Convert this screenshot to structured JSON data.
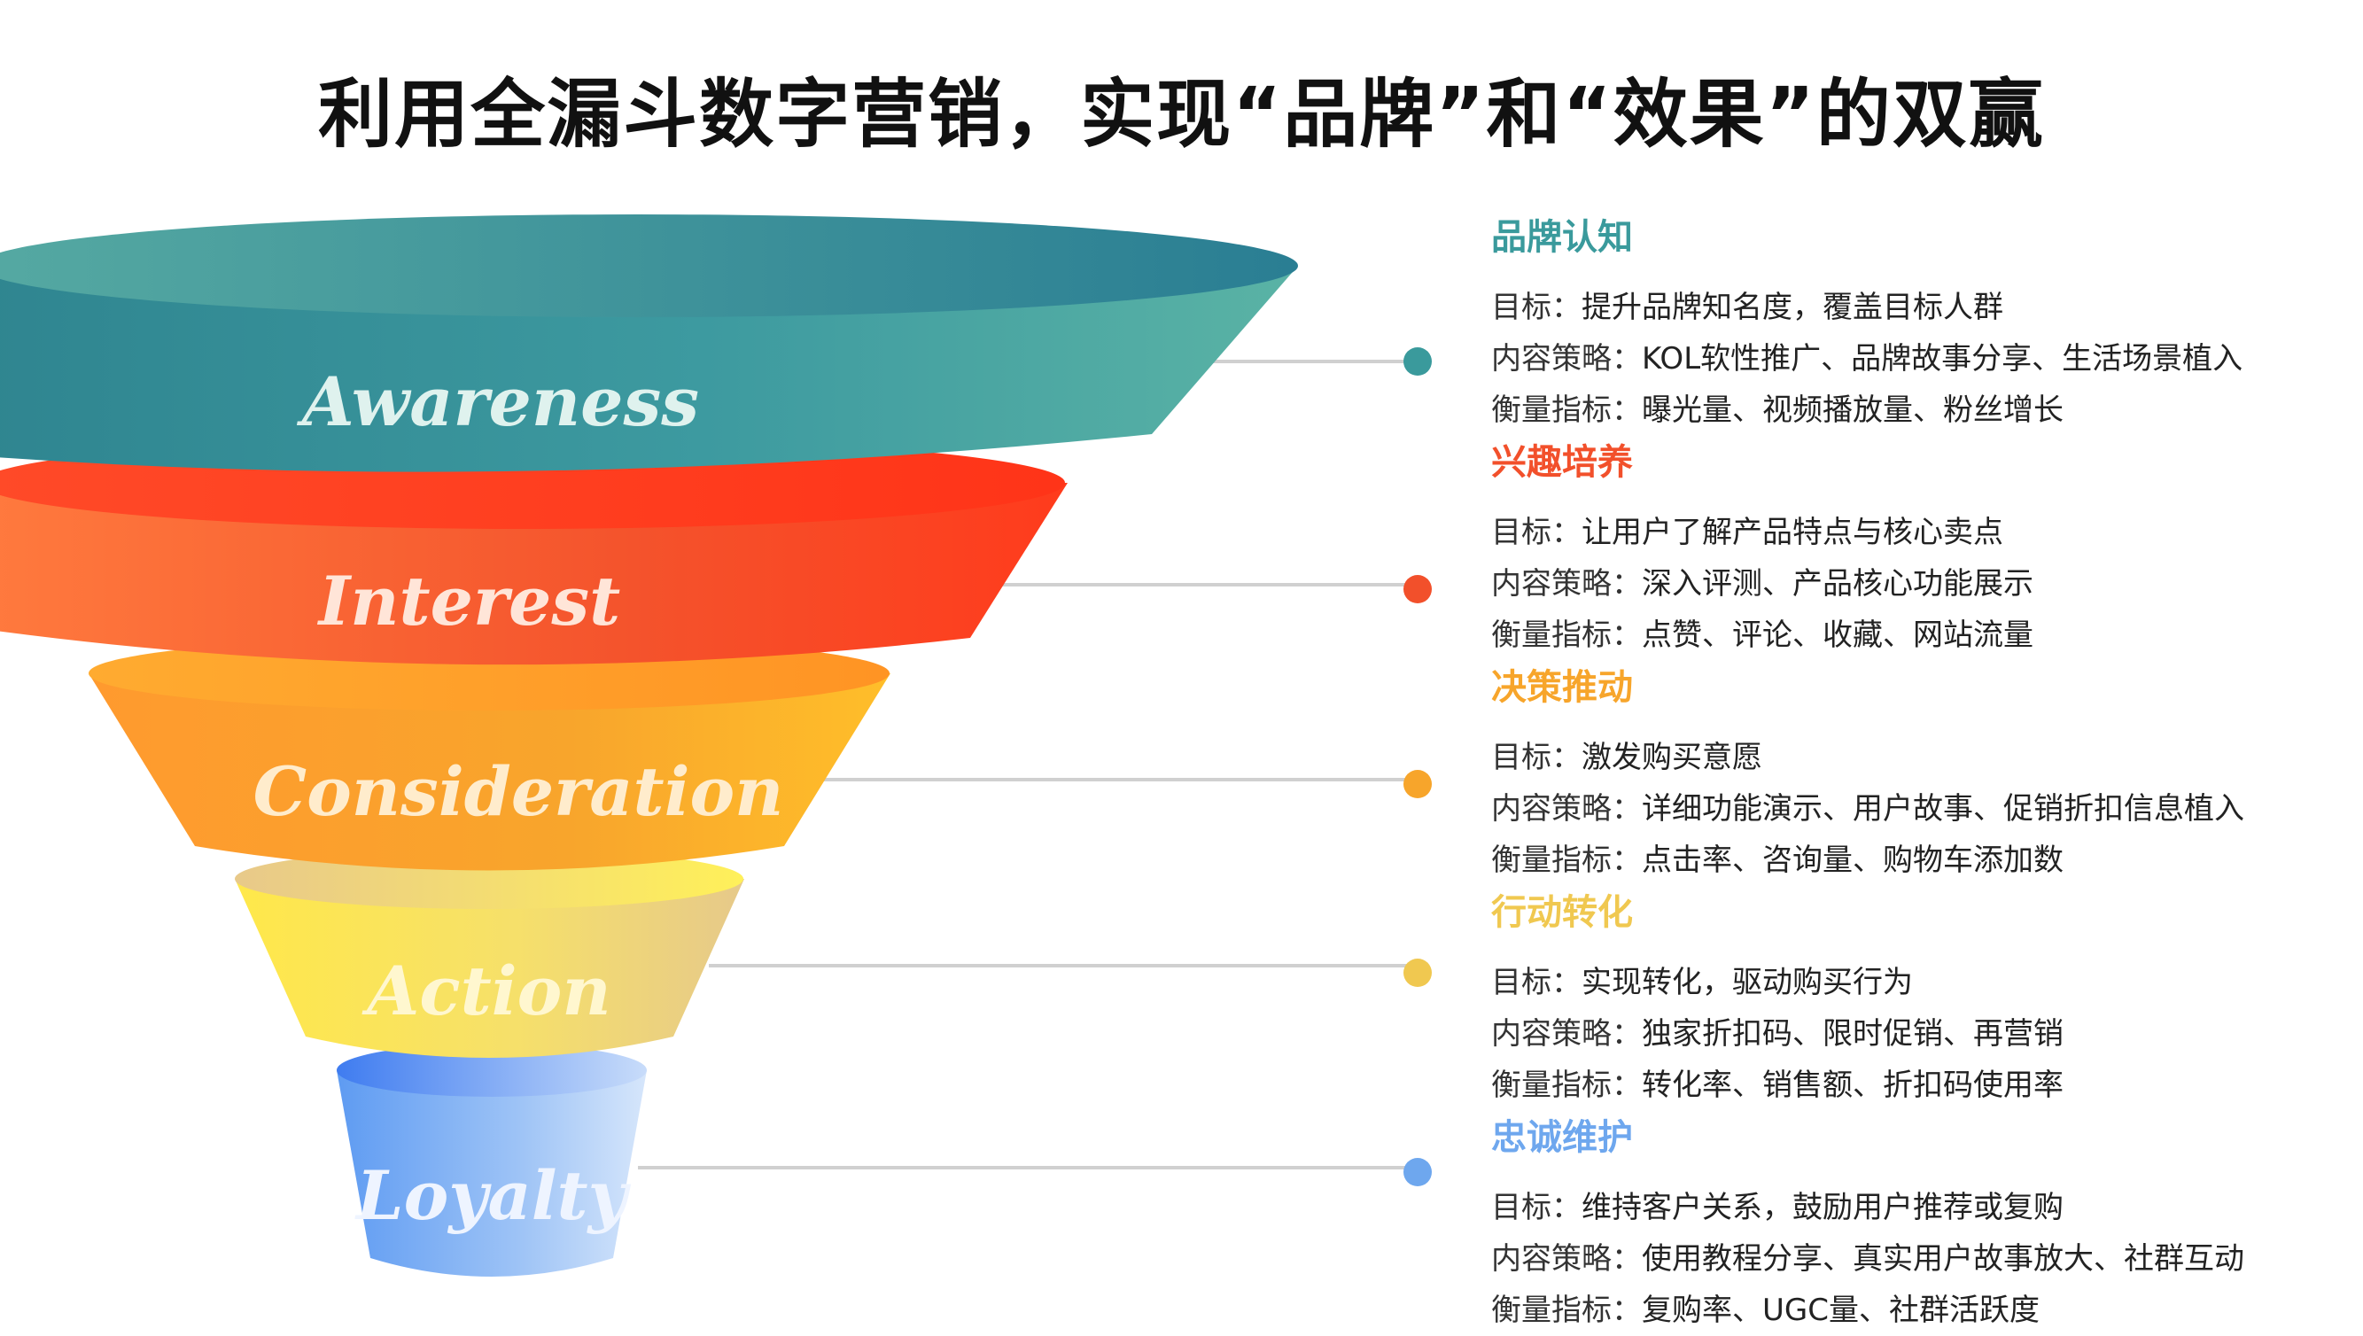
{
  "title": "利用全漏斗数字营销，实现“品牌”和“效果”的双赢",
  "colors": {
    "awareness": "#3a9a9c",
    "interest": "#f2502b",
    "consideration": "#f7a52b",
    "action": "#f0c850",
    "loyalty": "#6ea7ee"
  },
  "stages": [
    {
      "label": "Awareness",
      "heading": "品牌认知",
      "goal_key": "目标：",
      "goal": "提升品牌知名度，覆盖目标人群",
      "strategy_key": "内容策略：",
      "strategy": "KOL软性推广、品牌故事分享、生活场景植入",
      "metric_key": "衡量指标：",
      "metric": "曝光量、视频播放量、粉丝增长"
    },
    {
      "label": "Interest",
      "heading": "兴趣培养",
      "goal_key": "目标：",
      "goal": "让用户了解产品特点与核心卖点",
      "strategy_key": "内容策略：",
      "strategy": "深入评测、产品核心功能展示",
      "metric_key": "衡量指标：",
      "metric": "点赞、评论、收藏、网站流量"
    },
    {
      "label": "Consideration",
      "heading": "决策推动",
      "goal_key": "目标：",
      "goal": "激发购买意愿",
      "strategy_key": "内容策略：",
      "strategy": "详细功能演示、用户故事、促销折扣信息植入",
      "metric_key": "衡量指标：",
      "metric": "点击率、咨询量、购物车添加数"
    },
    {
      "label": "Action",
      "heading": "行动转化",
      "goal_key": "目标：",
      "goal": "实现转化，驱动购买行为",
      "strategy_key": "内容策略：",
      "strategy": "独家折扣码、限时促销、再营销",
      "metric_key": "衡量指标：",
      "metric": "转化率、销售额、折扣码使用率"
    },
    {
      "label": "Loyalty",
      "heading": "忠诚维护",
      "goal_key": "目标：",
      "goal": "维持客户关系，鼓励用户推荐或复购",
      "strategy_key": "内容策略：",
      "strategy": "使用教程分享、真实用户故事放大、社群互动",
      "metric_key": "衡量指标：",
      "metric": "复购率、UGC量、社群活跃度"
    }
  ]
}
